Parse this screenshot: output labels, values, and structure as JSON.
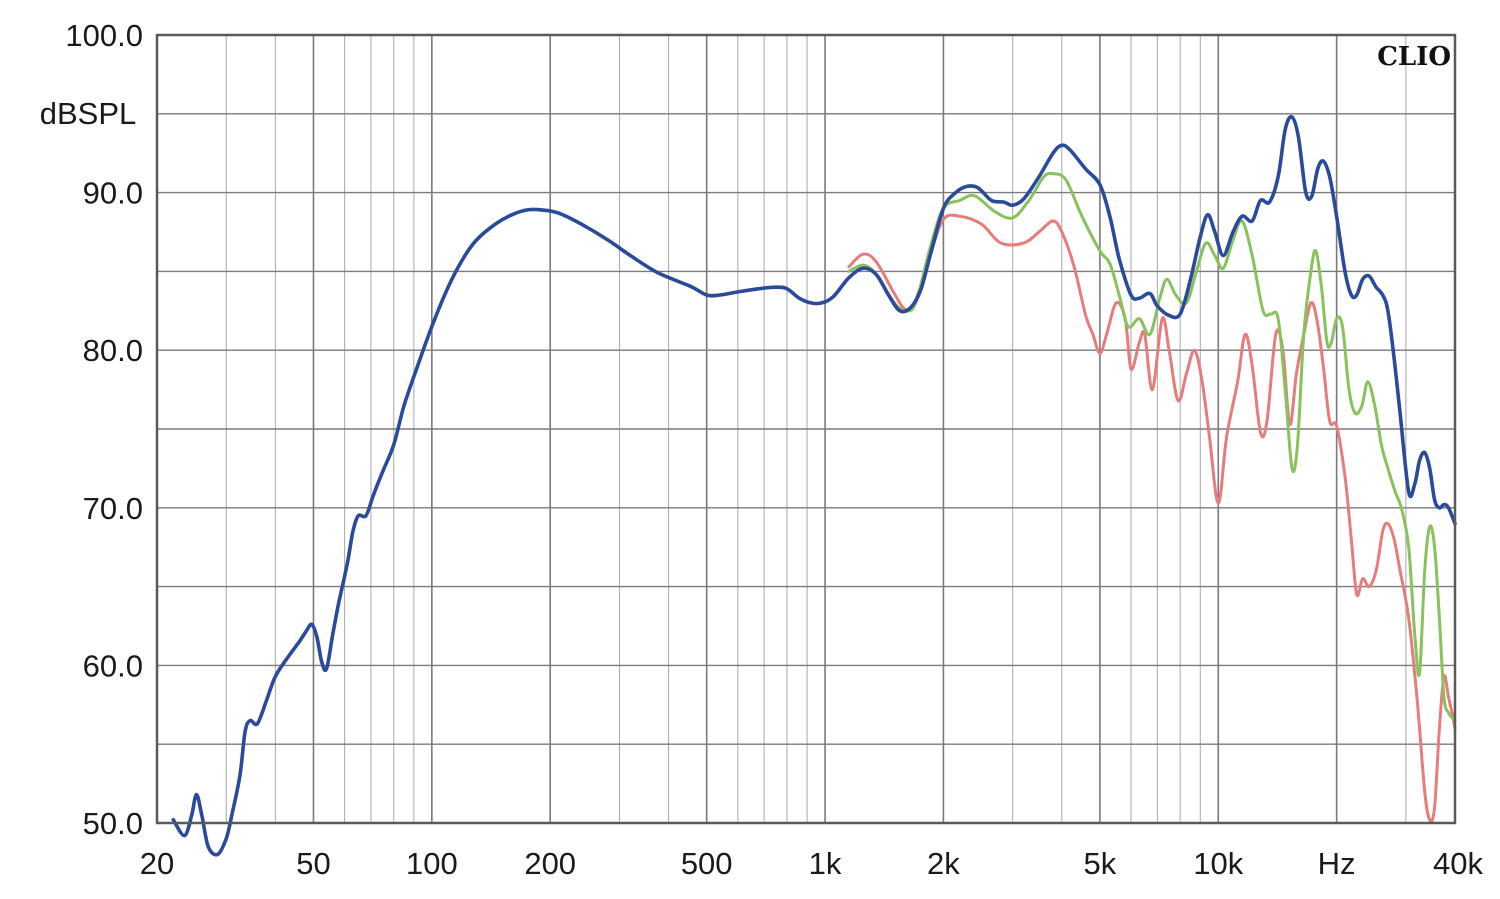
{
  "chart_data": {
    "type": "line",
    "brand": "CLIO",
    "ylabel": "dBSPL",
    "xunit": "Hz",
    "x_scale": "log",
    "xlim": [
      20,
      40000
    ],
    "ylim": [
      50,
      100
    ],
    "grid": true,
    "x_tick_labels": [
      {
        "value": 20,
        "label": "20"
      },
      {
        "value": 50,
        "label": "50"
      },
      {
        "value": 100,
        "label": "100"
      },
      {
        "value": 200,
        "label": "200"
      },
      {
        "value": 500,
        "label": "500"
      },
      {
        "value": 1000,
        "label": "1k"
      },
      {
        "value": 2000,
        "label": "2k"
      },
      {
        "value": 5000,
        "label": "5k"
      },
      {
        "value": 10000,
        "label": "10k"
      },
      {
        "value": 20000,
        "label": "Hz"
      },
      {
        "value": 40000,
        "label": "40k"
      }
    ],
    "y_tick_labels": [
      {
        "value": 100,
        "label": "100.0"
      },
      {
        "value": 90,
        "label": "90.0"
      },
      {
        "value": 80,
        "label": "80.0"
      },
      {
        "value": 70,
        "label": "70.0"
      },
      {
        "value": 60,
        "label": "60.0"
      },
      {
        "value": 50,
        "label": "50.0"
      }
    ],
    "series": [
      {
        "color": "#e87c7c",
        "points": [
          [
            1150,
            85.3
          ],
          [
            1250,
            86.1
          ],
          [
            1350,
            85.6
          ],
          [
            1500,
            83.6
          ],
          [
            1600,
            82.6
          ],
          [
            1700,
            83.2
          ],
          [
            1850,
            86.0
          ],
          [
            2000,
            88.3
          ],
          [
            2200,
            88.5
          ],
          [
            2500,
            88.0
          ],
          [
            2800,
            86.8
          ],
          [
            3200,
            86.8
          ],
          [
            3500,
            87.5
          ],
          [
            3800,
            88.2
          ],
          [
            4000,
            87.5
          ],
          [
            4300,
            85.3
          ],
          [
            4600,
            82.2
          ],
          [
            4800,
            81.0
          ],
          [
            5000,
            79.8
          ],
          [
            5200,
            81.0
          ],
          [
            5500,
            83.0
          ],
          [
            5800,
            82.0
          ],
          [
            6000,
            78.8
          ],
          [
            6300,
            80.5
          ],
          [
            6500,
            81.0
          ],
          [
            6800,
            77.5
          ],
          [
            7200,
            82.0
          ],
          [
            7500,
            80.0
          ],
          [
            7900,
            76.8
          ],
          [
            8300,
            78.5
          ],
          [
            8700,
            80.0
          ],
          [
            9100,
            78.0
          ],
          [
            9500,
            74.5
          ],
          [
            10000,
            70.3
          ],
          [
            10500,
            74.5
          ],
          [
            11200,
            78.0
          ],
          [
            11700,
            81.0
          ],
          [
            12200,
            79.0
          ],
          [
            12800,
            74.8
          ],
          [
            13300,
            75.5
          ],
          [
            14000,
            81.0
          ],
          [
            14600,
            80.0
          ],
          [
            15200,
            75.3
          ],
          [
            15800,
            78.5
          ],
          [
            16500,
            81.0
          ],
          [
            17200,
            83.0
          ],
          [
            17800,
            82.0
          ],
          [
            18500,
            79.0
          ],
          [
            19200,
            75.5
          ],
          [
            20000,
            75.2
          ],
          [
            21000,
            72.0
          ],
          [
            21800,
            68.0
          ],
          [
            22500,
            64.5
          ],
          [
            23300,
            65.5
          ],
          [
            24200,
            65.0
          ],
          [
            25200,
            66.0
          ],
          [
            26200,
            68.5
          ],
          [
            27000,
            69.0
          ],
          [
            28000,
            68.0
          ],
          [
            29000,
            66.0
          ],
          [
            30500,
            63.0
          ],
          [
            32000,
            58.0
          ],
          [
            33500,
            52.0
          ],
          [
            34500,
            50.2
          ],
          [
            35500,
            51.0
          ],
          [
            36500,
            56.0
          ],
          [
            37500,
            59.3
          ],
          [
            38500,
            58.0
          ],
          [
            39300,
            57.0
          ],
          [
            40000,
            56.0
          ]
        ]
      },
      {
        "color": "#88c25c",
        "points": [
          [
            1150,
            85.0
          ],
          [
            1250,
            85.4
          ],
          [
            1350,
            84.8
          ],
          [
            1500,
            83.0
          ],
          [
            1600,
            82.5
          ],
          [
            1700,
            83.0
          ],
          [
            1850,
            86.5
          ],
          [
            2000,
            89.0
          ],
          [
            2200,
            89.5
          ],
          [
            2400,
            89.8
          ],
          [
            2700,
            88.8
          ],
          [
            3000,
            88.4
          ],
          [
            3300,
            89.5
          ],
          [
            3600,
            91.0
          ],
          [
            3800,
            91.2
          ],
          [
            4100,
            90.8
          ],
          [
            4500,
            88.5
          ],
          [
            5000,
            86.3
          ],
          [
            5300,
            85.5
          ],
          [
            5600,
            83.5
          ],
          [
            5900,
            81.5
          ],
          [
            6300,
            82.0
          ],
          [
            6700,
            81.0
          ],
          [
            7100,
            83.3
          ],
          [
            7400,
            84.5
          ],
          [
            7800,
            83.5
          ],
          [
            8300,
            83.0
          ],
          [
            8800,
            85.0
          ],
          [
            9300,
            86.8
          ],
          [
            9800,
            86.0
          ],
          [
            10300,
            85.2
          ],
          [
            10900,
            87.0
          ],
          [
            11500,
            88.2
          ],
          [
            12200,
            86.0
          ],
          [
            13000,
            82.5
          ],
          [
            13600,
            82.3
          ],
          [
            14200,
            82.0
          ],
          [
            14800,
            77.5
          ],
          [
            15400,
            72.5
          ],
          [
            15900,
            74.0
          ],
          [
            16500,
            81.0
          ],
          [
            17200,
            85.0
          ],
          [
            17700,
            86.3
          ],
          [
            18300,
            84.0
          ],
          [
            18900,
            80.5
          ],
          [
            19400,
            80.5
          ],
          [
            20000,
            82.0
          ],
          [
            20700,
            81.5
          ],
          [
            21500,
            77.5
          ],
          [
            22300,
            76.0
          ],
          [
            23200,
            76.5
          ],
          [
            24000,
            78.0
          ],
          [
            25000,
            76.5
          ],
          [
            26000,
            74.0
          ],
          [
            27000,
            72.5
          ],
          [
            28200,
            71.0
          ],
          [
            29200,
            70.0
          ],
          [
            30500,
            67.5
          ],
          [
            31600,
            62.0
          ],
          [
            32500,
            59.5
          ],
          [
            33500,
            66.0
          ],
          [
            34500,
            68.8
          ],
          [
            35500,
            67.5
          ],
          [
            36500,
            63.0
          ],
          [
            37500,
            58.0
          ],
          [
            38500,
            57.0
          ],
          [
            40000,
            56.5
          ]
        ]
      },
      {
        "color": "#2a4a9a",
        "points": [
          [
            22,
            50.2
          ],
          [
            23.5,
            49.2
          ],
          [
            24.5,
            50.5
          ],
          [
            25.2,
            51.8
          ],
          [
            26,
            50.5
          ],
          [
            27,
            48.5
          ],
          [
            28.5,
            48.0
          ],
          [
            30,
            49.0
          ],
          [
            31,
            50.5
          ],
          [
            32.5,
            53.0
          ],
          [
            33.5,
            55.8
          ],
          [
            34.5,
            56.5
          ],
          [
            36,
            56.3
          ],
          [
            38,
            57.8
          ],
          [
            40,
            59.3
          ],
          [
            43,
            60.5
          ],
          [
            46,
            61.5
          ],
          [
            48,
            62.2
          ],
          [
            49.5,
            62.6
          ],
          [
            51,
            61.8
          ],
          [
            52.5,
            60.2
          ],
          [
            54,
            59.8
          ],
          [
            56,
            62.0
          ],
          [
            58,
            64.0
          ],
          [
            61,
            66.5
          ],
          [
            63,
            68.5
          ],
          [
            65,
            69.5
          ],
          [
            68,
            69.5
          ],
          [
            71,
            70.8
          ],
          [
            75,
            72.3
          ],
          [
            80,
            74.0
          ],
          [
            85,
            76.5
          ],
          [
            92,
            79.0
          ],
          [
            100,
            81.5
          ],
          [
            110,
            84.0
          ],
          [
            120,
            85.8
          ],
          [
            130,
            87.0
          ],
          [
            145,
            88.0
          ],
          [
            160,
            88.6
          ],
          [
            175,
            88.9
          ],
          [
            190,
            88.9
          ],
          [
            210,
            88.7
          ],
          [
            240,
            88.0
          ],
          [
            280,
            87.0
          ],
          [
            320,
            86.0
          ],
          [
            370,
            85.0
          ],
          [
            420,
            84.4
          ],
          [
            460,
            84.0
          ],
          [
            500,
            83.5
          ],
          [
            540,
            83.5
          ],
          [
            600,
            83.7
          ],
          [
            680,
            83.9
          ],
          [
            750,
            84.0
          ],
          [
            800,
            83.9
          ],
          [
            860,
            83.3
          ],
          [
            920,
            83.0
          ],
          [
            980,
            83.0
          ],
          [
            1050,
            83.4
          ],
          [
            1150,
            84.6
          ],
          [
            1250,
            85.2
          ],
          [
            1350,
            84.8
          ],
          [
            1450,
            83.5
          ],
          [
            1550,
            82.5
          ],
          [
            1650,
            82.7
          ],
          [
            1750,
            83.8
          ],
          [
            1850,
            86.0
          ],
          [
            2000,
            89.0
          ],
          [
            2150,
            90.0
          ],
          [
            2300,
            90.4
          ],
          [
            2450,
            90.3
          ],
          [
            2650,
            89.5
          ],
          [
            2850,
            89.4
          ],
          [
            3000,
            89.2
          ],
          [
            3200,
            89.6
          ],
          [
            3500,
            91.0
          ],
          [
            3800,
            92.5
          ],
          [
            4000,
            93.0
          ],
          [
            4200,
            92.7
          ],
          [
            4600,
            91.5
          ],
          [
            5000,
            90.5
          ],
          [
            5300,
            88.5
          ],
          [
            5600,
            85.8
          ],
          [
            6000,
            83.5
          ],
          [
            6300,
            83.3
          ],
          [
            6700,
            83.6
          ],
          [
            7000,
            82.8
          ],
          [
            7500,
            82.2
          ],
          [
            8000,
            82.3
          ],
          [
            8500,
            84.5
          ],
          [
            9000,
            87.2
          ],
          [
            9400,
            88.6
          ],
          [
            9800,
            87.5
          ],
          [
            10300,
            86.0
          ],
          [
            10900,
            87.5
          ],
          [
            11500,
            88.5
          ],
          [
            12200,
            88.2
          ],
          [
            12800,
            89.5
          ],
          [
            13500,
            89.4
          ],
          [
            14200,
            91.0
          ],
          [
            14800,
            94.0
          ],
          [
            15400,
            94.8
          ],
          [
            16000,
            93.5
          ],
          [
            16700,
            90.0
          ],
          [
            17300,
            89.8
          ],
          [
            17900,
            91.5
          ],
          [
            18500,
            92.0
          ],
          [
            19200,
            91.0
          ],
          [
            20000,
            88.5
          ],
          [
            21000,
            85.0
          ],
          [
            21800,
            83.5
          ],
          [
            22500,
            83.5
          ],
          [
            23300,
            84.5
          ],
          [
            24200,
            84.7
          ],
          [
            25200,
            84.0
          ],
          [
            26200,
            83.5
          ],
          [
            27000,
            82.5
          ],
          [
            28000,
            79.5
          ],
          [
            29000,
            76.0
          ],
          [
            30500,
            71.0
          ],
          [
            31600,
            71.5
          ],
          [
            32500,
            73.0
          ],
          [
            33500,
            73.5
          ],
          [
            34500,
            72.5
          ],
          [
            35500,
            70.5
          ],
          [
            36500,
            70.0
          ],
          [
            37500,
            70.2
          ],
          [
            38500,
            70.0
          ],
          [
            40000,
            69.0
          ]
        ]
      }
    ]
  }
}
